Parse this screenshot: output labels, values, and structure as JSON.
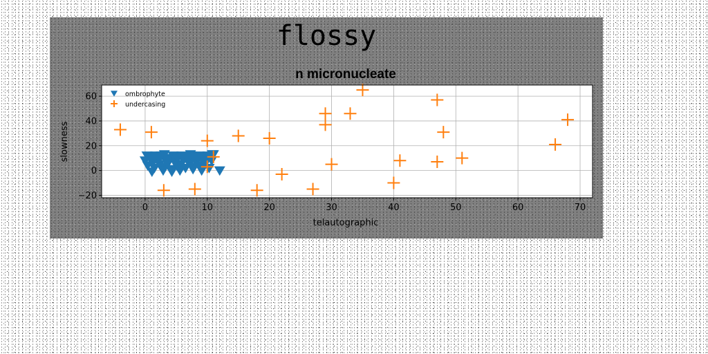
{
  "figure_title": "flossy",
  "colors": {
    "series_1": "#1f77b4",
    "series_2": "#ff7f0e",
    "panel": "#808080"
  },
  "chart_data": {
    "type": "scatter",
    "title": "n micronucleate",
    "xlabel": "telautographic",
    "ylabel": "slowness",
    "xlim": [
      -7,
      72
    ],
    "ylim": [
      -22,
      69
    ],
    "xticks": [
      0,
      10,
      20,
      30,
      40,
      50,
      60,
      70
    ],
    "yticks": [
      -20,
      0,
      20,
      40,
      60
    ],
    "grid": true,
    "legend": "upper-left",
    "series": [
      {
        "name": "ombrophyte",
        "marker": "triangle-down",
        "x": [
          0,
          0.4,
          0.8,
          1.2,
          1.5,
          1.9,
          2.3,
          2.6,
          3.0,
          3.3,
          3.7,
          4.0,
          4.4,
          4.7,
          5.1,
          5.4,
          5.8,
          6.1,
          6.5,
          6.8,
          7.2,
          7.5,
          7.9,
          8.2,
          8.6,
          8.9,
          9.3,
          9.6,
          10.0,
          10.3,
          10.7,
          11.0,
          0.3,
          1.0,
          1.7,
          2.4,
          3.1,
          3.8,
          4.5,
          5.2,
          5.9,
          6.6,
          7.3,
          8.0,
          8.7,
          9.4,
          10.1,
          10.8,
          1.1,
          2.9,
          4.3,
          5.6,
          7.7,
          9.1,
          12
        ],
        "y": [
          8,
          4,
          11,
          6,
          2,
          9,
          5,
          12,
          3,
          8,
          6,
          10,
          1,
          7,
          4,
          11,
          5,
          9,
          2,
          8,
          6,
          12,
          3,
          7,
          10,
          4,
          9,
          5,
          11,
          2,
          8,
          13,
          12,
          10,
          12,
          11,
          13,
          9,
          12,
          10,
          12,
          11,
          13,
          10,
          12,
          9,
          12,
          13,
          -1,
          0,
          -1,
          0,
          1,
          0,
          0
        ]
      },
      {
        "name": "undercasing",
        "marker": "plus",
        "x": [
          -4,
          1,
          3,
          8,
          10,
          10,
          11,
          15,
          18,
          20,
          22,
          27,
          29,
          29,
          30,
          33,
          35,
          40,
          41,
          47,
          47,
          48,
          51,
          66,
          68
        ],
        "y": [
          33,
          31,
          -16,
          -15,
          24,
          3,
          11,
          28,
          -16,
          26,
          -3,
          -15,
          46,
          37,
          5,
          46,
          65,
          -10,
          8,
          57,
          7,
          31,
          10,
          21,
          41
        ]
      }
    ]
  }
}
